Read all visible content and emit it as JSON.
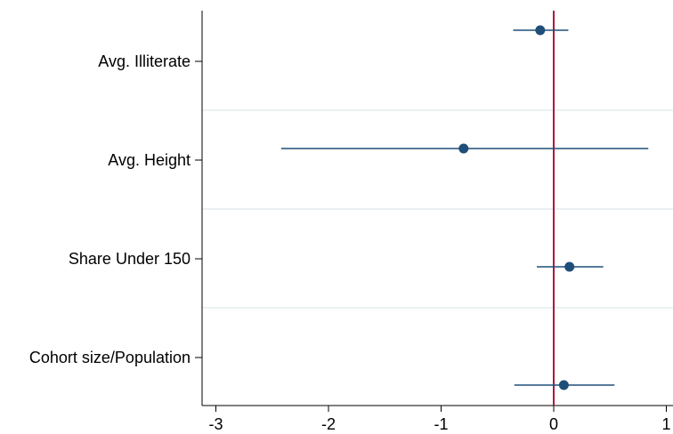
{
  "chart_data": {
    "type": "scatter",
    "subtype": "coefficient-plot",
    "title": "",
    "xlabel": "",
    "ylabel": "",
    "xlim": [
      -3,
      1
    ],
    "xticks": [
      "-3",
      "-2",
      "-1",
      "0",
      "1"
    ],
    "reference_line": {
      "x": 0,
      "color": "#b0173c"
    },
    "grid": "horizontal",
    "colors": {
      "marker": "#1f4e79",
      "ci": "#1f4e79",
      "grid": "#e6ebee"
    },
    "rows": [
      {
        "label": "Avg. Illiterate",
        "estimate": -0.12,
        "ci": [
          -0.36,
          0.13
        ]
      },
      {
        "label": "Avg. Height",
        "estimate": -0.8,
        "ci": [
          -2.42,
          0.84
        ]
      },
      {
        "label": "Share Under 150",
        "estimate": 0.14,
        "ci": [
          -0.15,
          0.44
        ]
      },
      {
        "label": "Cohort size/Population",
        "estimate": 0.09,
        "ci": [
          -0.35,
          0.54
        ]
      }
    ]
  }
}
